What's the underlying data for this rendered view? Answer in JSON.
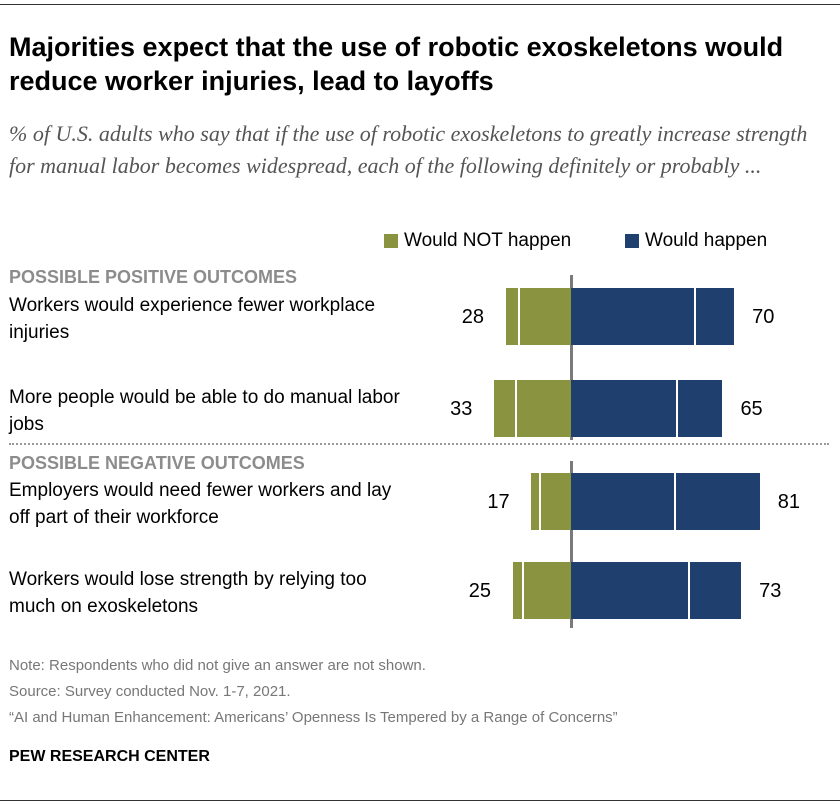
{
  "title": "Majorities expect that the use of robotic exoskeletons would reduce worker injuries, lead to layoffs",
  "subtitle": "% of U.S. adults who say that if the use of robotic exoskeletons to greatly increase strength for manual labor becomes widespread, each of the following definitely or probably ...",
  "colors": {
    "not": "#8a9340",
    "happen": "#1f3f6e"
  },
  "chart_data": {
    "type": "bar",
    "orientation": "horizontal-diverging",
    "legend": [
      "Would NOT happen",
      "Would happen"
    ],
    "legend_placement": "top-right",
    "sections": [
      {
        "heading": "POSSIBLE POSITIVE OUTCOMES",
        "items": [
          {
            "label": "Workers would experience fewer workplace injuries",
            "not_total": 28,
            "not_segments": [
              22,
              6
            ],
            "happen_total": 70,
            "happen_segments": [
              53,
              17
            ]
          },
          {
            "label": "More people would be able to do manual labor jobs",
            "not_total": 33,
            "not_segments": [
              23,
              10
            ],
            "happen_total": 65,
            "happen_segments": [
              45,
              20
            ]
          }
        ]
      },
      {
        "heading": "POSSIBLE NEGATIVE OUTCOMES",
        "items": [
          {
            "label": "Employers would need fewer workers and lay off part of their workforce",
            "not_total": 17,
            "not_segments": [
              13,
              4
            ],
            "happen_total": 81,
            "happen_segments": [
              44,
              37
            ]
          },
          {
            "label": "Workers would lose strength by relying too much on exoskeletons",
            "not_total": 25,
            "not_segments": [
              20,
              5
            ],
            "happen_total": 73,
            "happen_segments": [
              50,
              23
            ]
          }
        ]
      }
    ]
  },
  "notes": {
    "note": "Note: Respondents who did not give an answer are not shown.",
    "source": "Source: Survey conducted Nov. 1-7, 2021.",
    "report": "“AI and Human Enhancement: Americans’ Openness Is Tempered by a Range of Concerns”"
  },
  "brand": "PEW RESEARCH CENTER"
}
